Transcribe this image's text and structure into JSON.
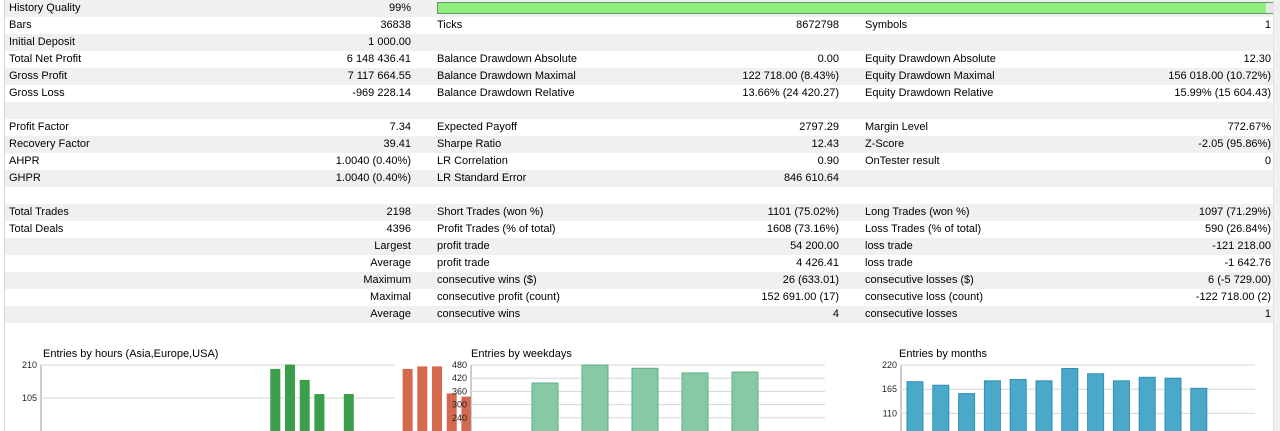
{
  "history_quality": {
    "label": "History Quality",
    "value": "99%",
    "level": 0.99,
    "color": "#8fef7f"
  },
  "rows": [
    {
      "c1l": "Bars",
      "c1v": "36838",
      "c2l": "Ticks",
      "c2v": "8672798",
      "c3l": "Symbols",
      "c3v": "1"
    },
    {
      "c1l": "Initial Deposit",
      "c1v": "1 000.00",
      "c2l": "",
      "c2v": "",
      "c3l": "",
      "c3v": ""
    },
    {
      "c1l": "Total Net Profit",
      "c1v": "6 148 436.41",
      "c2l": "Balance Drawdown Absolute",
      "c2v": "0.00",
      "c3l": "Equity Drawdown Absolute",
      "c3v": "12.30"
    },
    {
      "c1l": "Gross Profit",
      "c1v": "7 117 664.55",
      "c2l": "Balance Drawdown Maximal",
      "c2v": "122 718.00 (8.43%)",
      "c3l": "Equity Drawdown Maximal",
      "c3v": "156 018.00 (10.72%)"
    },
    {
      "c1l": "Gross Loss",
      "c1v": "-969 228.14",
      "c2l": "Balance Drawdown Relative",
      "c2v": "13.66% (24 420.27)",
      "c3l": "Equity Drawdown Relative",
      "c3v": "15.99% (15 604.43)"
    },
    {
      "c1l": "",
      "c1v": "",
      "c2l": "",
      "c2v": "",
      "c3l": "",
      "c3v": ""
    },
    {
      "c1l": "Profit Factor",
      "c1v": "7.34",
      "c2l": "Expected Payoff",
      "c2v": "2797.29",
      "c3l": "Margin Level",
      "c3v": "772.67%"
    },
    {
      "c1l": "Recovery Factor",
      "c1v": "39.41",
      "c2l": "Sharpe Ratio",
      "c2v": "12.43",
      "c3l": "Z-Score",
      "c3v": "-2.05 (95.86%)"
    },
    {
      "c1l": "AHPR",
      "c1v": "1.0040 (0.40%)",
      "c2l": "LR Correlation",
      "c2v": "0.90",
      "c3l": "OnTester result",
      "c3v": "0"
    },
    {
      "c1l": "GHPR",
      "c1v": "1.0040 (0.40%)",
      "c2l": "LR Standard Error",
      "c2v": "846 610.64",
      "c3l": "",
      "c3v": ""
    },
    {
      "c1l": "",
      "c1v": "",
      "c2l": "",
      "c2v": "",
      "c3l": "",
      "c3v": ""
    },
    {
      "c1l": "Total Trades",
      "c1v": "2198",
      "c2l": "Short Trades (won %)",
      "c2v": "1101 (75.02%)",
      "c3l": "Long Trades (won %)",
      "c3v": "1097 (71.29%)"
    },
    {
      "c1l": "Total Deals",
      "c1v": "4396",
      "c2l": "Profit Trades (% of total)",
      "c2v": "1608 (73.16%)",
      "c3l": "Loss Trades (% of total)",
      "c3v": "590 (26.84%)"
    },
    {
      "c1l": "",
      "c1v": "Largest",
      "c2l": "profit trade",
      "c2v": "54 200.00",
      "c3l": "loss trade",
      "c3v": "-121 218.00"
    },
    {
      "c1l": "",
      "c1v": "Average",
      "c2l": "profit trade",
      "c2v": "4 426.41",
      "c3l": "loss trade",
      "c3v": "-1 642.76"
    },
    {
      "c1l": "",
      "c1v": "Maximum",
      "c2l": "consecutive wins ($)",
      "c2v": "26 (633.01)",
      "c3l": "consecutive losses ($)",
      "c3v": "6 (-5 729.00)"
    },
    {
      "c1l": "",
      "c1v": "Maximal",
      "c2l": "consecutive profit (count)",
      "c2v": "152 691.00 (17)",
      "c3l": "consecutive loss (count)",
      "c3v": "-122 718.00 (2)"
    },
    {
      "c1l": "",
      "c1v": "Average",
      "c2l": "consecutive wins",
      "c2v": "4",
      "c3l": "consecutive losses",
      "c3v": "1"
    }
  ],
  "chart_data": [
    {
      "type": "bar",
      "title": "Entries by hours (Asia,Europe,USA)",
      "yticks": [
        "210",
        "105"
      ],
      "ylim": [
        0,
        210
      ],
      "tick_values": [
        210,
        105
      ],
      "values": [
        0,
        0,
        0,
        0,
        0,
        0,
        0,
        0,
        0,
        0,
        0,
        0,
        0,
        0,
        196,
        210,
        161,
        116,
        0,
        116,
        0,
        0,
        0,
        196,
        204,
        204,
        118,
        108
      ],
      "colors": [
        "green",
        "green",
        "green",
        "green",
        "green",
        "green",
        "green",
        "green",
        "green",
        "green",
        "green",
        "green",
        "green",
        "green",
        "green",
        "green",
        "green",
        "green",
        "green",
        "green",
        "green",
        "green",
        "red",
        "red",
        "red",
        "red",
        "red",
        "red"
      ],
      "palette": {
        "green": "#3b9e4a",
        "red": "#d4694f"
      },
      "grid": true
    },
    {
      "type": "bar",
      "title": "Entries by weekdays",
      "yticks": [
        "480",
        "420",
        "360",
        "300",
        "240"
      ],
      "ylim": [
        180,
        480
      ],
      "tick_values": [
        480,
        420,
        360,
        300,
        240
      ],
      "values": [
        398,
        480,
        465,
        444,
        448
      ],
      "palette": {
        "fill": "#86c9a4",
        "stroke": "#5fae86"
      },
      "grid": true
    },
    {
      "type": "bar",
      "title": "Entries by months",
      "yticks": [
        "220",
        "165",
        "110"
      ],
      "ylim": [
        70,
        220
      ],
      "tick_values": [
        220,
        165,
        110
      ],
      "values": [
        182,
        174,
        155,
        184,
        187,
        184,
        212,
        200,
        184,
        192,
        190,
        167
      ],
      "palette": {
        "fill": "#4aa8c8",
        "stroke": "#2f8fb2"
      },
      "grid": true
    }
  ]
}
